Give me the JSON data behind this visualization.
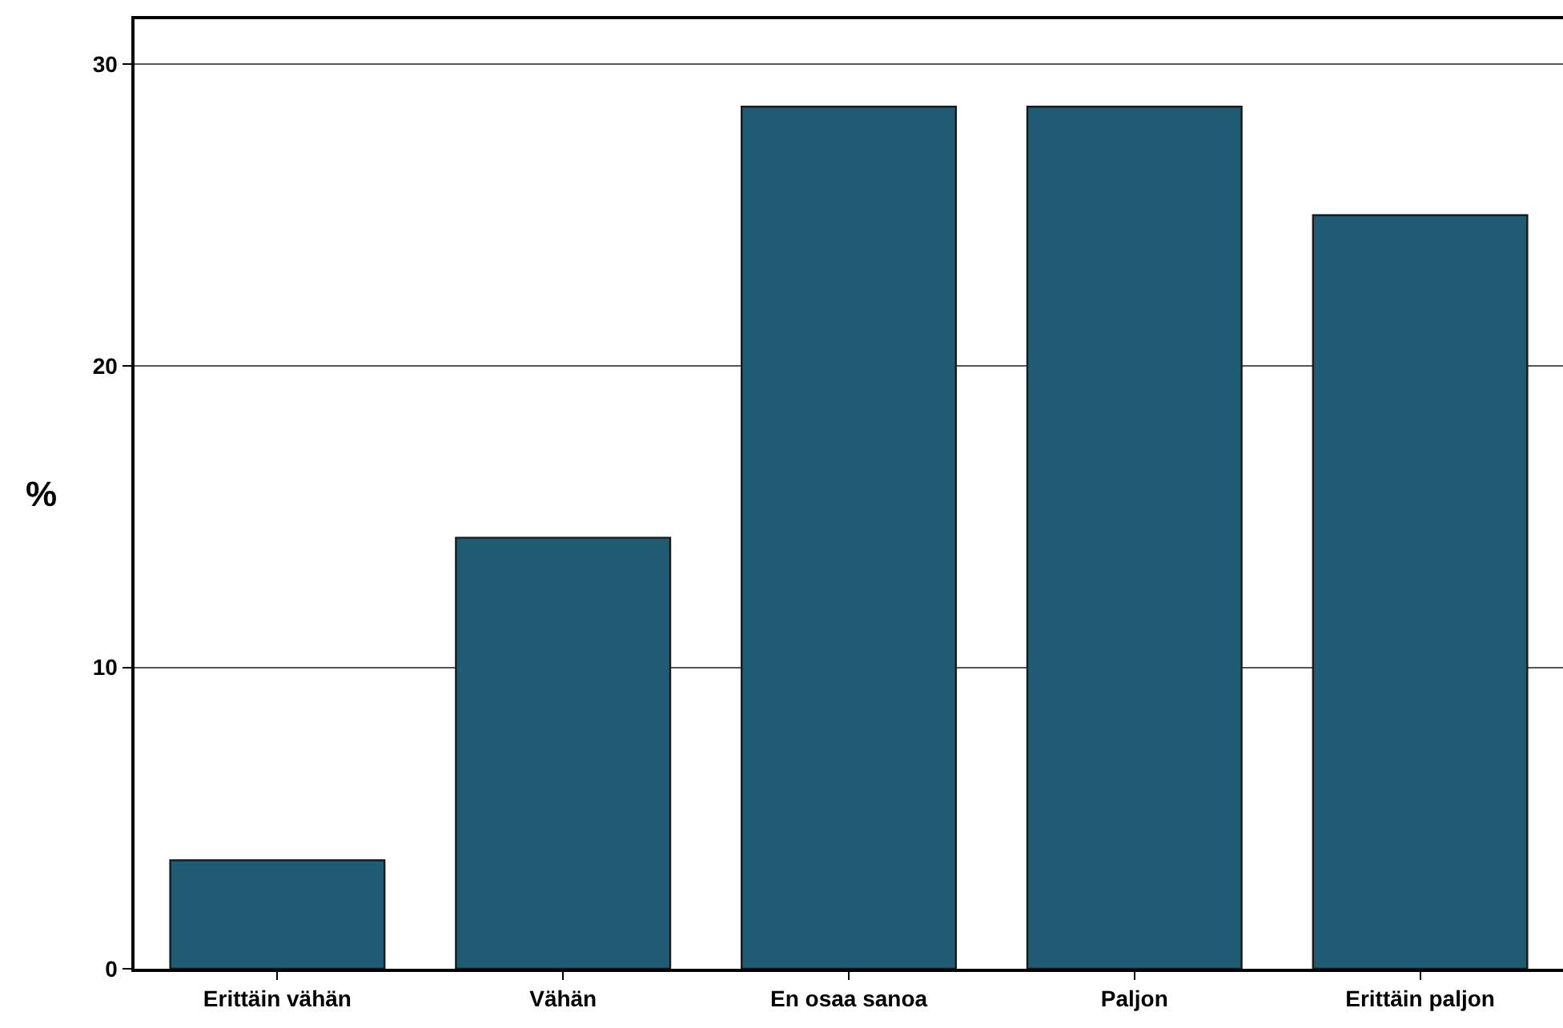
{
  "chart_data": {
    "type": "bar",
    "ylabel": "%",
    "categories": [
      "Erittäin vähän",
      "Vähän",
      "En osaa sanoa",
      "Paljon",
      "Erittäin paljon"
    ],
    "values": [
      3.6,
      14.3,
      28.6,
      28.6,
      25.0
    ],
    "color": "#1f5c73",
    "ylim": [
      0,
      31.5
    ],
    "yticks": [
      0,
      10,
      20,
      30
    ],
    "grid": "y",
    "legend": false
  }
}
